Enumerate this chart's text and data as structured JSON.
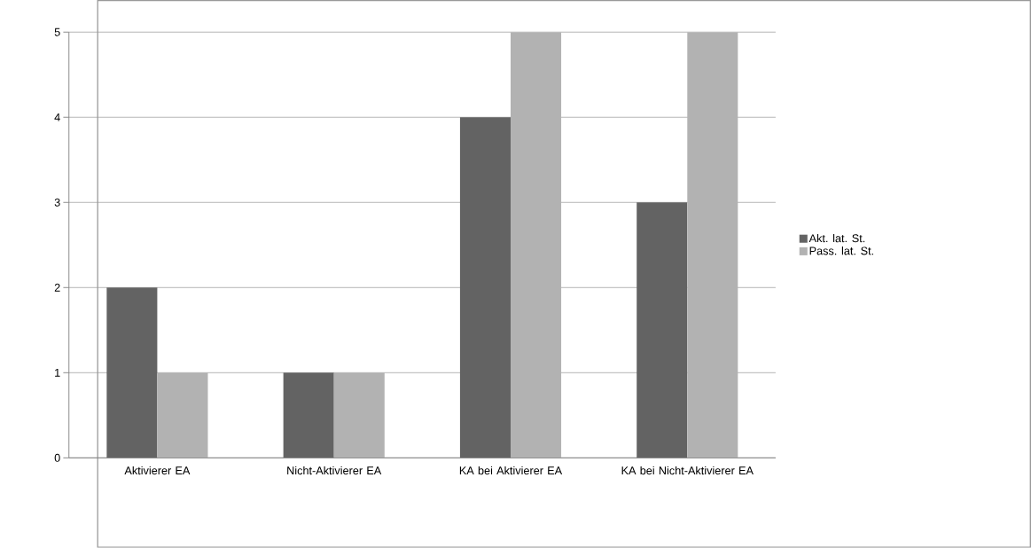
{
  "chart_data": {
    "type": "bar",
    "categories": [
      "Aktivierer EA",
      "Nicht-Aktivierer EA",
      "KA bei Aktivierer EA",
      "KA bei Nicht-Aktivierer EA"
    ],
    "series": [
      {
        "name": "Akt. lat. St.",
        "color": "#636363",
        "values": [
          2,
          1,
          4,
          3
        ]
      },
      {
        "name": "Pass. lat. St.",
        "color": "#b2b2b2",
        "values": [
          1,
          1,
          5,
          5
        ]
      }
    ],
    "ylim": [
      0,
      5
    ],
    "yticks": [
      0,
      1,
      2,
      3,
      4,
      5
    ],
    "grid": "y",
    "legend": "right"
  }
}
